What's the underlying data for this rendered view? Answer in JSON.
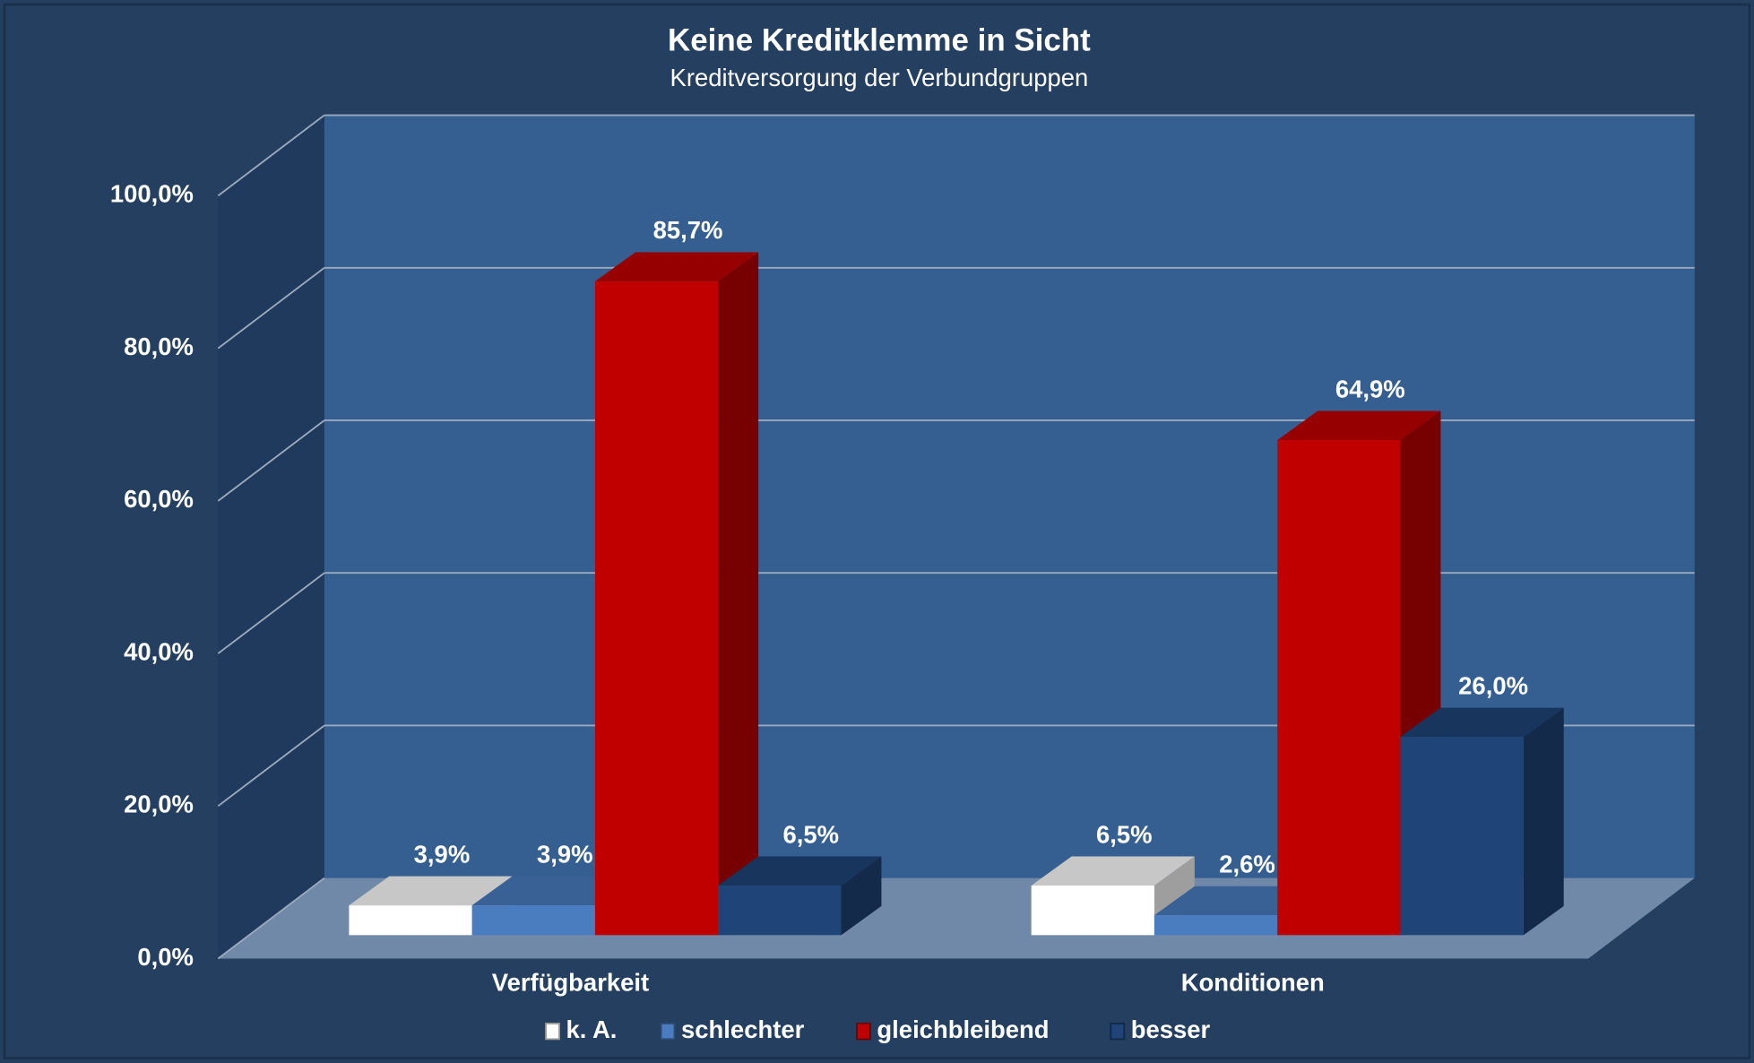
{
  "chart_data": {
    "type": "bar3d",
    "title": "Keine Kreditklemme in Sicht",
    "subtitle": "Kreditversorgung der Verbundgruppen",
    "categories": [
      "Verfügbarkeit",
      "Konditionen"
    ],
    "series": [
      {
        "name": "k. A.",
        "color": "#ffffff",
        "values": [
          3.9,
          6.5
        ],
        "value_labels": [
          "3,9%",
          "6,5%"
        ]
      },
      {
        "name": "schlechter",
        "color": "#4a7cc0",
        "values": [
          3.9,
          2.6
        ],
        "value_labels": [
          "3,9%",
          "2,6%"
        ]
      },
      {
        "name": "gleichbleibend",
        "color": "#c00000",
        "values": [
          85.7,
          64.9
        ],
        "value_labels": [
          "85,7%",
          "64,9%"
        ]
      },
      {
        "name": "besser",
        "color": "#1f4478",
        "values": [
          6.5,
          26.0
        ],
        "value_labels": [
          "6,5%",
          "26,0%"
        ]
      }
    ],
    "ylim": [
      0,
      100
    ],
    "yticks": [
      {
        "value": 0,
        "label": "0,0%"
      },
      {
        "value": 20,
        "label": "20,0%"
      },
      {
        "value": 40,
        "label": "40,0%"
      },
      {
        "value": 60,
        "label": "60,0%"
      },
      {
        "value": 80,
        "label": "80,0%"
      },
      {
        "value": 100,
        "label": "100,0%"
      }
    ],
    "grid": true,
    "legend": "bottom"
  }
}
